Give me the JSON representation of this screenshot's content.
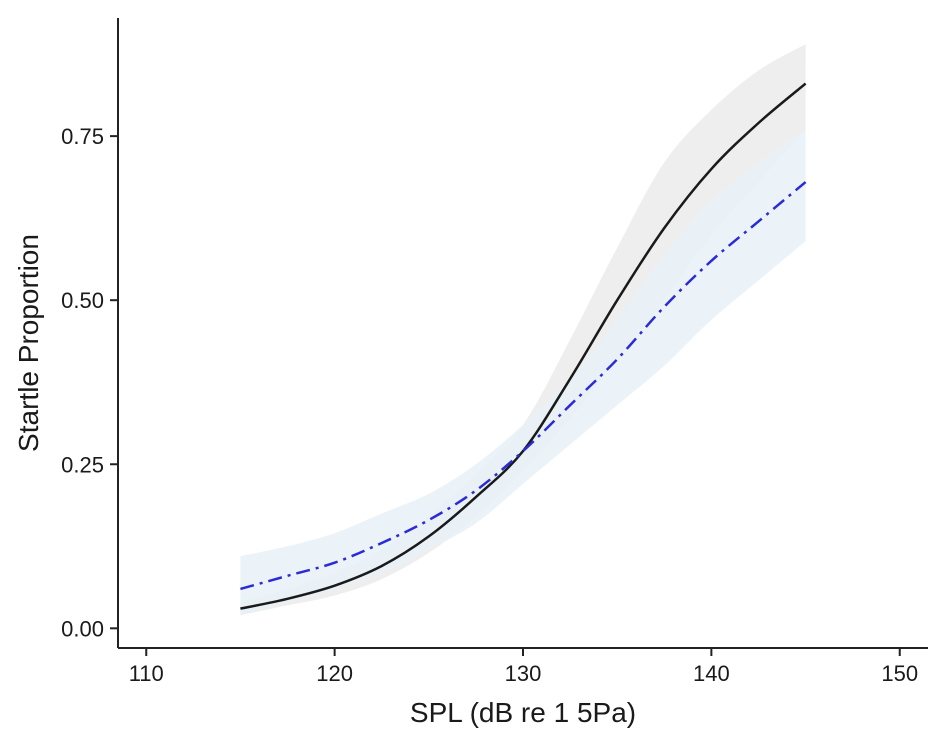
{
  "chart_data": {
    "type": "line",
    "xlabel": "SPL (dB re 1 5Pa)",
    "ylabel": "Startle Proportion",
    "xlim": [
      108.5,
      151.5
    ],
    "ylim": [
      -0.03,
      0.93
    ],
    "x_ticks": [
      110,
      120,
      130,
      140,
      150
    ],
    "x_tick_labels": [
      "110",
      "120",
      "130",
      "140",
      "150"
    ],
    "y_ticks": [
      0.0,
      0.25,
      0.5,
      0.75
    ],
    "y_tick_labels": [
      "0.00",
      "0.25",
      "0.50",
      "0.75"
    ],
    "grid": false,
    "legend": "none",
    "x": [
      115,
      117.5,
      120,
      122.5,
      125,
      127.5,
      130,
      132.5,
      135,
      137.5,
      140,
      142.5,
      145
    ],
    "series": [
      {
        "style": "solid",
        "color": "#1a1a1a",
        "band_color": "#ebebeb",
        "values": [
          0.03,
          0.045,
          0.065,
          0.095,
          0.14,
          0.2,
          0.27,
          0.38,
          0.5,
          0.61,
          0.7,
          0.77,
          0.83
        ],
        "lower": [
          0.02,
          0.035,
          0.05,
          0.075,
          0.115,
          0.17,
          0.24,
          0.32,
          0.41,
          0.5,
          0.6,
          0.68,
          0.76
        ],
        "upper": [
          0.04,
          0.06,
          0.085,
          0.12,
          0.17,
          0.235,
          0.31,
          0.44,
          0.58,
          0.71,
          0.79,
          0.85,
          0.89
        ]
      },
      {
        "style": "dashdot",
        "color": "#2b2bd6",
        "band_color": "#e8f1f8",
        "values": [
          0.06,
          0.08,
          0.1,
          0.13,
          0.165,
          0.21,
          0.27,
          0.34,
          0.41,
          0.49,
          0.56,
          0.62,
          0.68
        ],
        "lower": [
          0.02,
          0.04,
          0.06,
          0.085,
          0.12,
          0.16,
          0.22,
          0.28,
          0.34,
          0.4,
          0.47,
          0.53,
          0.59
        ],
        "upper": [
          0.11,
          0.125,
          0.145,
          0.175,
          0.205,
          0.25,
          0.31,
          0.38,
          0.47,
          0.57,
          0.65,
          0.71,
          0.76
        ]
      }
    ]
  }
}
